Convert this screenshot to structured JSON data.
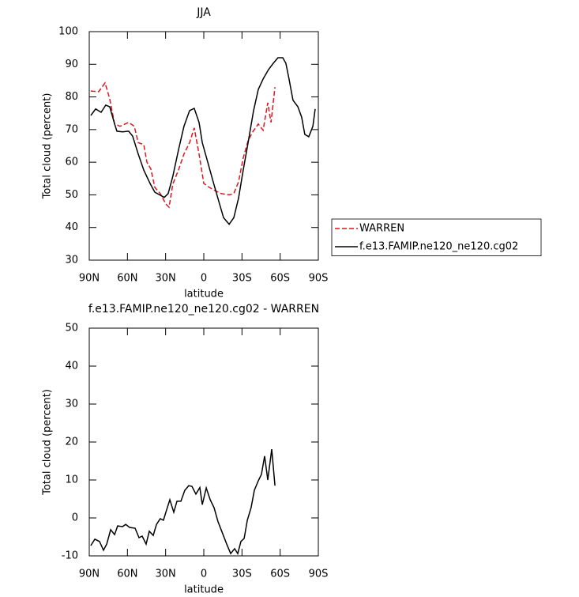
{
  "chart_data": [
    {
      "type": "line",
      "title": "JJA",
      "xlabel": "latitude",
      "ylabel": "Total cloud (percent)",
      "xlim": [
        90,
        -90
      ],
      "xticks": [
        {
          "value": 90,
          "label": "90N"
        },
        {
          "value": 60,
          "label": "60N"
        },
        {
          "value": 30,
          "label": "30N"
        },
        0,
        {
          "value": -30,
          "label": "30S"
        },
        {
          "value": -60,
          "label": "60S"
        },
        {
          "value": -90,
          "label": "90S"
        }
      ],
      "ylim": [
        30,
        100
      ],
      "yticks": [
        30,
        40,
        50,
        60,
        70,
        80,
        90,
        100
      ],
      "legend": "right",
      "series": [
        {
          "name": "WARREN",
          "color": "#e0141c",
          "dashed": true,
          "x": [
            88.8,
            82.6,
            77.6,
            73.9,
            70.1,
            65.8,
            59.0,
            54.6,
            51.5,
            47.2,
            44.7,
            41.6,
            38.5,
            34.2,
            29.8,
            27.3,
            24.3,
            19.9,
            15.6,
            11.2,
            7.5,
            3.7,
            0,
            -4.3,
            -7.4,
            -13.6,
            -19.9,
            -23.6,
            -27.3,
            -31.0,
            -34.8,
            -38.5,
            -42.8,
            -46.6,
            -50.3,
            -52.8,
            -55.9
          ],
          "values": [
            81.8,
            81.6,
            84.3,
            79.4,
            71.7,
            71.0,
            72.2,
            71.0,
            66.0,
            65.4,
            60.0,
            57.9,
            52.3,
            50.4,
            47.2,
            46.2,
            53.3,
            57.6,
            62.5,
            66.0,
            70.5,
            62.5,
            53.5,
            52.3,
            51.6,
            50.4,
            50.0,
            50.4,
            54.0,
            61.3,
            66.6,
            69.3,
            71.7,
            69.8,
            78.2,
            72.2,
            83.0
          ]
        },
        {
          "name": "f.e13.FAMIP.ne120_ne120.cg02",
          "color": "#000000",
          "dashed": false,
          "x": [
            88.8,
            85.0,
            80.7,
            77.0,
            73.9,
            70.1,
            68.3,
            63.9,
            59.0,
            55.9,
            51.5,
            47.2,
            42.2,
            38.5,
            34.2,
            31.1,
            28.0,
            24.3,
            19.9,
            15.6,
            11.2,
            7.5,
            3.7,
            1.2,
            -3.1,
            -7.4,
            -11.8,
            -15.5,
            -19.9,
            -23.6,
            -27.3,
            -31.0,
            -34.8,
            -39.1,
            -42.8,
            -46.6,
            -50.9,
            -54.6,
            -58.3,
            -62.1,
            -64.5,
            -67.0,
            -70.1,
            -73.9,
            -76.9,
            -79.4,
            -82.5,
            -85.7,
            -87.5
          ],
          "values": [
            74.3,
            76.3,
            75.3,
            77.5,
            77.0,
            71.7,
            69.5,
            69.3,
            69.5,
            68.0,
            62.5,
            57.6,
            53.5,
            50.8,
            49.9,
            49.2,
            50.4,
            55.7,
            63.7,
            71.0,
            75.8,
            76.5,
            72.2,
            66.0,
            60.0,
            54.0,
            48.0,
            43.0,
            41.0,
            43.0,
            49.0,
            57.6,
            66.0,
            75.8,
            82.3,
            85.5,
            88.4,
            90.3,
            92.0,
            92.0,
            90.3,
            85.5,
            79.0,
            77.0,
            73.8,
            68.5,
            67.8,
            71.0,
            76.3
          ]
        }
      ]
    },
    {
      "type": "line",
      "title": "f.e13.FAMIP.ne120_ne120.cg02 - WARREN",
      "xlabel": "latitude",
      "ylabel": "Total cloud (percent)",
      "xlim": [
        90,
        -90
      ],
      "xticks": [
        {
          "value": 90,
          "label": "90N"
        },
        {
          "value": 60,
          "label": "60N"
        },
        {
          "value": 30,
          "label": "30N"
        },
        0,
        {
          "value": -30,
          "label": "30S"
        },
        {
          "value": -60,
          "label": "60S"
        },
        {
          "value": -90,
          "label": "90S"
        }
      ],
      "ylim": [
        -10,
        50
      ],
      "yticks": [
        -10,
        0,
        10,
        20,
        30,
        40,
        50
      ],
      "color": "#000000",
      "x": [
        88.8,
        85.6,
        81.9,
        78.8,
        76.3,
        73.2,
        70.1,
        67.7,
        63.9,
        61.4,
        58.3,
        54.0,
        50.9,
        48.4,
        45.3,
        42.8,
        39.7,
        37.2,
        34.2,
        31.7,
        29.8,
        26.7,
        23.6,
        21.1,
        18.0,
        14.9,
        11.8,
        9.3,
        6.2,
        3.1,
        1.2,
        -1.9,
        -5.0,
        -8.1,
        -11.2,
        -14.9,
        -18.0,
        -21.1,
        -24.2,
        -26.7,
        -29.2,
        -31.7,
        -34.2,
        -37.2,
        -39.7,
        -42.8,
        -45.3,
        -47.8,
        -50.3,
        -53.4,
        -55.9
      ],
      "values": [
        -7.3,
        -5.6,
        -6.2,
        -8.5,
        -6.9,
        -3.1,
        -4.4,
        -2.1,
        -2.3,
        -1.7,
        -2.5,
        -2.7,
        -5.2,
        -4.8,
        -6.9,
        -3.5,
        -4.6,
        -1.7,
        -0.2,
        -0.6,
        1.5,
        4.8,
        1.5,
        4.4,
        4.4,
        7.3,
        8.5,
        8.3,
        6.3,
        8.0,
        3.5,
        7.9,
        4.8,
        2.7,
        -1.0,
        -4.2,
        -6.9,
        -9.4,
        -8.1,
        -9.4,
        -6.2,
        -5.4,
        -0.6,
        2.7,
        7.3,
        9.8,
        11.5,
        16.3,
        10.0,
        18.1,
        8.5
      ]
    }
  ]
}
